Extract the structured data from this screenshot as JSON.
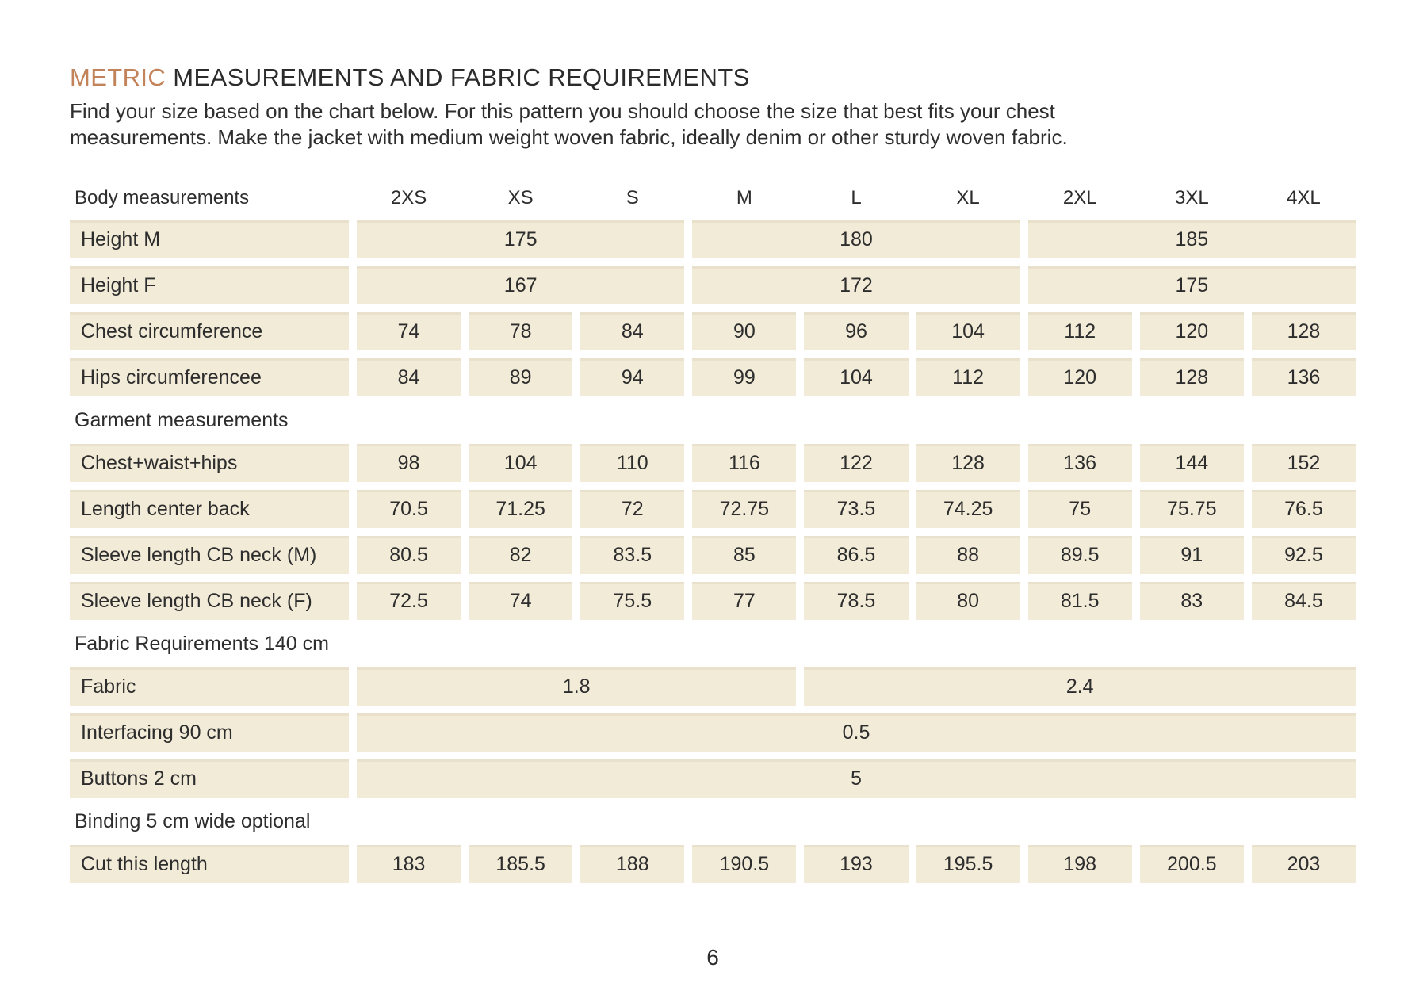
{
  "header": {
    "title_accent": "METRIC",
    "title_rest": " MEASUREMENTS AND FABRIC REQUIREMENTS",
    "intro_lines": [
      "Find your size based on the chart below. For this pattern you should choose the size that best fits your chest",
      "measurements. Make the jacket with medium weight woven fabric, ideally denim or other sturdy woven fabric."
    ]
  },
  "colors": {
    "accent": "#c3835a",
    "cell_background": "#f2ebd8",
    "text": "#2d2d2d"
  },
  "table": {
    "rows": [
      {
        "type": "colheads",
        "label": "Body measurements",
        "values": [
          "2XS",
          "XS",
          "S",
          "M",
          "L",
          "XL",
          "2XL",
          "3XL",
          "4XL"
        ]
      },
      {
        "type": "cells",
        "label": "Height M",
        "values": [
          "175",
          "180",
          "185"
        ],
        "spans": [
          3,
          3,
          3
        ]
      },
      {
        "type": "cells",
        "label": "Height F",
        "values": [
          "167",
          "172",
          "175"
        ],
        "spans": [
          3,
          3,
          3
        ]
      },
      {
        "type": "cells",
        "label": "Chest circumference",
        "values": [
          "74",
          "78",
          "84",
          "90",
          "96",
          "104",
          "112",
          "120",
          "128"
        ]
      },
      {
        "type": "cells",
        "label": "Hips circumferencee",
        "values": [
          "84",
          "89",
          "94",
          "99",
          "104",
          "112",
          "120",
          "128",
          "136"
        ]
      },
      {
        "type": "section",
        "label": "Garment measurements"
      },
      {
        "type": "cells",
        "label": "Chest+waist+hips",
        "values": [
          "98",
          "104",
          "110",
          "116",
          "122",
          "128",
          "136",
          "144",
          "152"
        ]
      },
      {
        "type": "cells",
        "label": "Length center back",
        "values": [
          "70.5",
          "71.25",
          "72",
          "72.75",
          "73.5",
          "74.25",
          "75",
          "75.75",
          "76.5"
        ]
      },
      {
        "type": "cells",
        "label": "Sleeve length CB neck (M)",
        "values": [
          "80.5",
          "82",
          "83.5",
          "85",
          "86.5",
          "88",
          "89.5",
          "91",
          "92.5"
        ]
      },
      {
        "type": "cells",
        "label": "Sleeve length CB neck (F)",
        "values": [
          "72.5",
          "74",
          "75.5",
          "77",
          "78.5",
          "80",
          "81.5",
          "83",
          "84.5"
        ]
      },
      {
        "type": "section",
        "label": "Fabric Requirements 140 cm"
      },
      {
        "type": "cells",
        "label": "Fabric",
        "values": [
          "1.8",
          "2.4"
        ],
        "spans": [
          4,
          5
        ]
      },
      {
        "type": "cells",
        "label": "Interfacing 90 cm",
        "values": [
          "0.5"
        ],
        "spans": [
          9
        ]
      },
      {
        "type": "cells",
        "label": "Buttons 2 cm",
        "values": [
          "5"
        ],
        "spans": [
          9
        ]
      },
      {
        "type": "section",
        "label": "Binding 5 cm wide optional"
      },
      {
        "type": "cells",
        "label": "Cut this length",
        "values": [
          "183",
          "185.5",
          "188",
          "190.5",
          "193",
          "195.5",
          "198",
          "200.5",
          "203"
        ]
      }
    ]
  },
  "footer": {
    "page_number": "6"
  }
}
